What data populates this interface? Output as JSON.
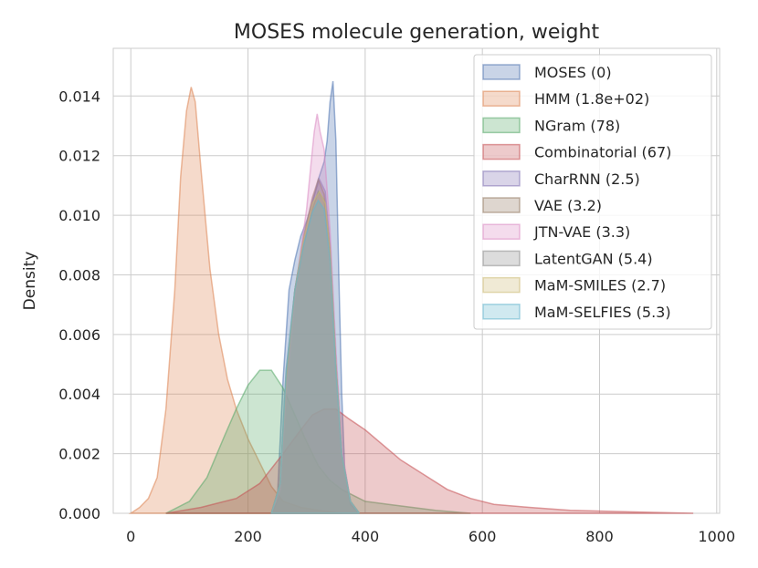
{
  "chart_data": {
    "type": "area",
    "title": "MOSES molecule generation, weight",
    "xlabel": "",
    "ylabel": "Density",
    "xlim": [
      -30,
      1005
    ],
    "ylim": [
      0,
      0.0156
    ],
    "x_ticks": [
      0,
      200,
      400,
      600,
      800,
      1000
    ],
    "x_tick_labels": [
      "0",
      "200",
      "400",
      "600",
      "800",
      "1000"
    ],
    "y_ticks": [
      0.0,
      0.002,
      0.004,
      0.006,
      0.008,
      0.01,
      0.012,
      0.014
    ],
    "y_tick_labels": [
      "0.000",
      "0.002",
      "0.004",
      "0.006",
      "0.008",
      "0.010",
      "0.012",
      "0.014"
    ],
    "grid": true,
    "legend_position": "top-right",
    "series": [
      {
        "name": "MOSES (0)",
        "color": "#4c72b0",
        "points": [
          [
            240,
            0
          ],
          [
            250,
            0.0004
          ],
          [
            260,
            0.0045
          ],
          [
            270,
            0.0075
          ],
          [
            280,
            0.0085
          ],
          [
            290,
            0.0093
          ],
          [
            300,
            0.0098
          ],
          [
            310,
            0.0104
          ],
          [
            320,
            0.0112
          ],
          [
            330,
            0.0118
          ],
          [
            335,
            0.0125
          ],
          [
            340,
            0.0138
          ],
          [
            345,
            0.0145
          ],
          [
            350,
            0.0125
          ],
          [
            355,
            0.008
          ],
          [
            360,
            0.004
          ],
          [
            365,
            0.0015
          ],
          [
            375,
            0.0003
          ],
          [
            390,
            0
          ]
        ]
      },
      {
        "name": "HMM (1.8e+02)",
        "color": "#dd8452",
        "points": [
          [
            0,
            0
          ],
          [
            15,
            0.0002
          ],
          [
            30,
            0.0005
          ],
          [
            45,
            0.0012
          ],
          [
            60,
            0.0035
          ],
          [
            75,
            0.0075
          ],
          [
            85,
            0.0113
          ],
          [
            95,
            0.0135
          ],
          [
            103,
            0.0143
          ],
          [
            110,
            0.0138
          ],
          [
            120,
            0.0115
          ],
          [
            135,
            0.0082
          ],
          [
            150,
            0.006
          ],
          [
            165,
            0.0045
          ],
          [
            180,
            0.0035
          ],
          [
            200,
            0.0025
          ],
          [
            220,
            0.0017
          ],
          [
            240,
            0.0009
          ],
          [
            260,
            0.0004
          ],
          [
            290,
            0.0002
          ],
          [
            320,
            0.0001
          ],
          [
            360,
            0
          ]
        ]
      },
      {
        "name": "NGram (78)",
        "color": "#55a868",
        "points": [
          [
            60,
            0
          ],
          [
            100,
            0.0004
          ],
          [
            130,
            0.0012
          ],
          [
            160,
            0.0026
          ],
          [
            180,
            0.0035
          ],
          [
            200,
            0.0043
          ],
          [
            220,
            0.0048
          ],
          [
            240,
            0.0048
          ],
          [
            260,
            0.0042
          ],
          [
            280,
            0.0033
          ],
          [
            300,
            0.0024
          ],
          [
            320,
            0.0016
          ],
          [
            340,
            0.0011
          ],
          [
            360,
            0.0008
          ],
          [
            380,
            0.0006
          ],
          [
            400,
            0.0004
          ],
          [
            440,
            0.0003
          ],
          [
            480,
            0.0002
          ],
          [
            520,
            0.0001
          ],
          [
            580,
            0
          ]
        ]
      },
      {
        "name": "Combinatorial (67)",
        "color": "#c44e52",
        "points": [
          [
            60,
            0
          ],
          [
            120,
            0.0002
          ],
          [
            180,
            0.0005
          ],
          [
            220,
            0.001
          ],
          [
            260,
            0.002
          ],
          [
            290,
            0.0028
          ],
          [
            310,
            0.0033
          ],
          [
            330,
            0.0035
          ],
          [
            350,
            0.0035
          ],
          [
            370,
            0.0032
          ],
          [
            400,
            0.0028
          ],
          [
            430,
            0.0023
          ],
          [
            460,
            0.0018
          ],
          [
            500,
            0.0013
          ],
          [
            540,
            0.0008
          ],
          [
            580,
            0.0005
          ],
          [
            620,
            0.0003
          ],
          [
            680,
            0.0002
          ],
          [
            750,
            0.0001
          ],
          [
            850,
            5e-05
          ],
          [
            960,
            0
          ]
        ]
      },
      {
        "name": "CharRNN (2.5)",
        "color": "#8172b3",
        "points": [
          [
            240,
            0
          ],
          [
            255,
            0.001
          ],
          [
            265,
            0.0045
          ],
          [
            280,
            0.0075
          ],
          [
            295,
            0.0092
          ],
          [
            310,
            0.0105
          ],
          [
            322,
            0.0112
          ],
          [
            332,
            0.0108
          ],
          [
            340,
            0.009
          ],
          [
            350,
            0.005
          ],
          [
            360,
            0.002
          ],
          [
            375,
            0.0004
          ],
          [
            390,
            0
          ]
        ]
      },
      {
        "name": "VAE (3.2)",
        "color": "#937860",
        "points": [
          [
            240,
            0
          ],
          [
            255,
            0.001
          ],
          [
            265,
            0.0045
          ],
          [
            280,
            0.0075
          ],
          [
            295,
            0.0093
          ],
          [
            310,
            0.0106
          ],
          [
            320,
            0.0112
          ],
          [
            330,
            0.0107
          ],
          [
            340,
            0.0088
          ],
          [
            350,
            0.005
          ],
          [
            360,
            0.002
          ],
          [
            375,
            0.0004
          ],
          [
            390,
            0
          ]
        ]
      },
      {
        "name": "JTN-VAE (3.3)",
        "color": "#da8bc3",
        "points": [
          [
            240,
            0
          ],
          [
            255,
            0.0008
          ],
          [
            265,
            0.004
          ],
          [
            280,
            0.0072
          ],
          [
            290,
            0.0088
          ],
          [
            300,
            0.0102
          ],
          [
            308,
            0.0118
          ],
          [
            313,
            0.0128
          ],
          [
            318,
            0.0134
          ],
          [
            323,
            0.0128
          ],
          [
            330,
            0.0122
          ],
          [
            340,
            0.0095
          ],
          [
            350,
            0.0055
          ],
          [
            360,
            0.0022
          ],
          [
            375,
            0.0004
          ],
          [
            390,
            0
          ]
        ]
      },
      {
        "name": "LatentGAN (5.4)",
        "color": "#8c8c8c",
        "points": [
          [
            240,
            0
          ],
          [
            255,
            0.001
          ],
          [
            265,
            0.0048
          ],
          [
            280,
            0.0075
          ],
          [
            295,
            0.009
          ],
          [
            310,
            0.0102
          ],
          [
            320,
            0.0108
          ],
          [
            330,
            0.0105
          ],
          [
            340,
            0.0088
          ],
          [
            350,
            0.005
          ],
          [
            360,
            0.002
          ],
          [
            375,
            0.0004
          ],
          [
            390,
            0
          ]
        ]
      },
      {
        "name": "MaM-SMILES (2.7)",
        "color": "#ccb974",
        "points": [
          [
            240,
            0
          ],
          [
            255,
            0.001
          ],
          [
            265,
            0.0045
          ],
          [
            280,
            0.0075
          ],
          [
            295,
            0.0092
          ],
          [
            310,
            0.0104
          ],
          [
            322,
            0.0108
          ],
          [
            332,
            0.0104
          ],
          [
            340,
            0.0088
          ],
          [
            350,
            0.005
          ],
          [
            360,
            0.002
          ],
          [
            375,
            0.0004
          ],
          [
            390,
            0
          ]
        ]
      },
      {
        "name": "MaM-SELFIES (5.3)",
        "color": "#64b5cd",
        "points": [
          [
            240,
            0
          ],
          [
            255,
            0.001
          ],
          [
            265,
            0.0048
          ],
          [
            280,
            0.0075
          ],
          [
            295,
            0.009
          ],
          [
            310,
            0.0101
          ],
          [
            320,
            0.0105
          ],
          [
            330,
            0.0102
          ],
          [
            340,
            0.0085
          ],
          [
            350,
            0.0048
          ],
          [
            360,
            0.002
          ],
          [
            375,
            0.0004
          ],
          [
            390,
            0
          ]
        ]
      }
    ]
  }
}
